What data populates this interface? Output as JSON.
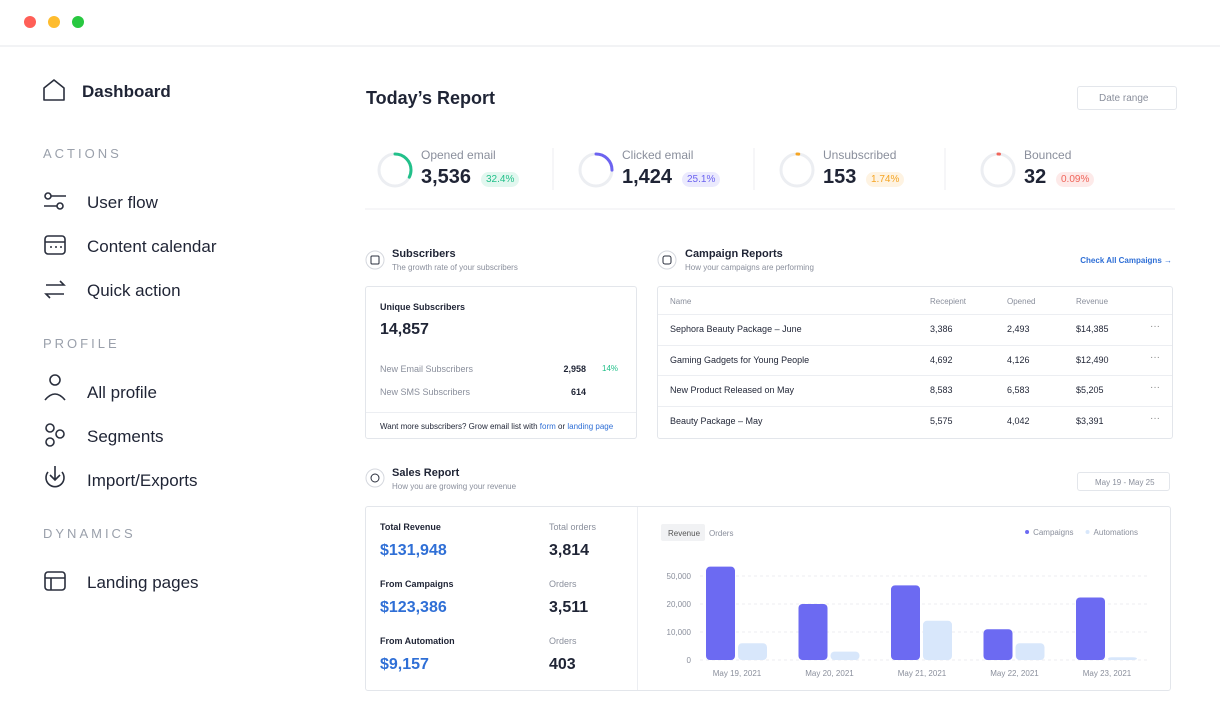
{
  "sidebar": {
    "dashboard": "Dashboard",
    "sections": [
      {
        "title": "ACTIONS",
        "items": [
          "User flow",
          "Content calendar",
          "Quick action"
        ]
      },
      {
        "title": "PROFILE",
        "items": [
          "All profile",
          "Segments",
          "Import/Exports"
        ]
      },
      {
        "title": "DYNAMICS",
        "items": [
          "Landing pages"
        ]
      }
    ]
  },
  "header": {
    "title": "Today’s Report",
    "date_range": "Date range"
  },
  "stats": [
    {
      "label": "Opened email",
      "value": "3,536",
      "percent": 32.4,
      "percent_label": "32.4%",
      "color": "#22c08a"
    },
    {
      "label": "Clicked email",
      "value": "1,424",
      "percent": 25.1,
      "percent_label": "25.1%",
      "color": "#6c63f0"
    },
    {
      "label": "Unsubscribed",
      "value": "153",
      "percent": 1.74,
      "percent_label": "1.74%",
      "color": "#f5a524"
    },
    {
      "label": "Bounced",
      "value": "32",
      "percent": 0.09,
      "percent_label": "0.09%",
      "color": "#f0655a"
    }
  ],
  "subscribers": {
    "title": "Subscribers",
    "subtitle": "The growth rate of your subscribers",
    "unique_label": "Unique Subscribers",
    "unique_value": "14,857",
    "rows": [
      {
        "label": "New Email Subscribers",
        "value": "2,958",
        "change": "14%"
      },
      {
        "label": "New SMS Subscribers",
        "value": "614"
      }
    ],
    "footer_text": "Want more subscribers? Grow email list with",
    "footer_link1": "form",
    "footer_or": "or",
    "footer_link2": "landing page"
  },
  "campaigns": {
    "title": "Campaign Reports",
    "subtitle": "How your campaigns are performing",
    "link": "Check All Campaigns →",
    "columns": [
      "Name",
      "Recepient",
      "Opened",
      "Revenue"
    ],
    "rows": [
      [
        "Sephora Beauty Package – June",
        "3,386",
        "2,493",
        "$14,385"
      ],
      [
        "Gaming Gadgets for Young People",
        "4,692",
        "4,126",
        "$12,490"
      ],
      [
        "New Product Released on May",
        "8,583",
        "6,583",
        "$5,205"
      ],
      [
        "Beauty Package – May",
        "5,575",
        "4,042",
        "$3,391"
      ]
    ]
  },
  "sales": {
    "title": "Sales Report",
    "subtitle": "How you are growing your revenue",
    "date_range": "May 19 - May 25",
    "metrics": [
      {
        "label": "Total Revenue",
        "value": "$131,948"
      },
      {
        "label": "From Campaigns",
        "value": "$123,386"
      },
      {
        "label": "From Automation",
        "value": "$9,157"
      }
    ],
    "orders": [
      {
        "label": "Total orders",
        "value": "3,814"
      },
      {
        "label": "Orders",
        "value": "3,511"
      },
      {
        "label": "Orders",
        "value": "403"
      }
    ],
    "tabs": [
      "Revenue",
      "Orders"
    ]
  },
  "chart_data": {
    "type": "bar",
    "categories": [
      "May 19, 2021",
      "May 20, 2021",
      "May 21, 2021",
      "May 22, 2021",
      "May 23, 2021"
    ],
    "series": [
      {
        "name": "Campaigns",
        "color": "#6c6af2",
        "values": [
          60000,
          20000,
          40000,
          11000,
          27000
        ]
      },
      {
        "name": "Automations",
        "color": "#d8e7fb",
        "values": [
          6000,
          3000,
          14000,
          6000,
          1000
        ]
      }
    ],
    "ylim": [
      0,
      60000
    ],
    "yticks": [
      0,
      {
        "value": 10000,
        "label": "10,000"
      },
      {
        "value": 20000,
        "label": "20,000"
      },
      {
        "value": 50000,
        "label": "50,000"
      }
    ],
    "grid": true
  }
}
